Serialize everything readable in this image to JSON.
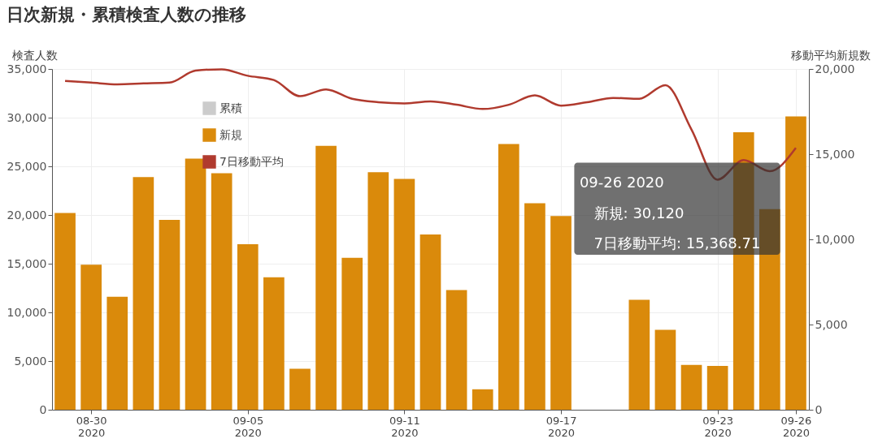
{
  "chart_data": {
    "type": "bar",
    "title": "日次新規・累積検査人数の推移",
    "ylabel": "検査人数",
    "y2label": "移動平均新規数",
    "x": [
      "2020-08-29",
      "2020-08-30",
      "2020-08-31",
      "2020-09-01",
      "2020-09-02",
      "2020-09-03",
      "2020-09-04",
      "2020-09-05",
      "2020-09-06",
      "2020-09-07",
      "2020-09-08",
      "2020-09-09",
      "2020-09-10",
      "2020-09-11",
      "2020-09-12",
      "2020-09-13",
      "2020-09-14",
      "2020-09-15",
      "2020-09-16",
      "2020-09-17",
      "2020-09-18",
      "2020-09-19",
      "2020-09-20",
      "2020-09-21",
      "2020-09-22",
      "2020-09-23",
      "2020-09-24",
      "2020-09-25",
      "2020-09-26"
    ],
    "xlim": [
      "2020-08-28T12:00",
      "2020-09-26T12:00"
    ],
    "xticks": [
      {
        "value": "2020-08-30",
        "label": "08-30\n2020"
      },
      {
        "value": "2020-09-05",
        "label": "09-05\n2020"
      },
      {
        "value": "2020-09-11",
        "label": "09-11\n2020"
      },
      {
        "value": "2020-09-17",
        "label": "09-17\n2020"
      },
      {
        "value": "2020-09-23",
        "label": "09-23\n2020"
      },
      {
        "value": "2020-09-26",
        "label": "09-26\n2020"
      }
    ],
    "ylim": [
      0,
      35000
    ],
    "yticks": [
      0,
      {
        "value": 5000,
        "label": "5,000"
      },
      {
        "value": 10000,
        "label": "10,000"
      },
      {
        "value": 15000,
        "label": "15,000"
      },
      {
        "value": 20000,
        "label": "20,000"
      },
      {
        "value": 25000,
        "label": "25,000"
      },
      {
        "value": 30000,
        "label": "30,000"
      },
      {
        "value": 35000,
        "label": "35,000"
      }
    ],
    "y2lim": [
      0,
      20000
    ],
    "y2ticks": [
      0,
      {
        "value": 5000,
        "label": "5,000"
      },
      {
        "value": 10000,
        "label": "10,000"
      },
      {
        "value": 15000,
        "label": "15,000"
      },
      {
        "value": 20000,
        "label": "20,000"
      }
    ],
    "series": [
      {
        "name": "累積",
        "color": "#cccccc",
        "values": [
          null,
          null,
          null,
          null,
          null,
          null,
          null,
          null,
          null,
          null,
          null,
          null,
          null,
          null,
          null,
          null,
          null,
          null,
          null,
          null,
          null,
          null,
          null,
          null,
          null,
          null,
          null,
          null,
          null
        ]
      },
      {
        "name": "新規",
        "color": "#da8a0b",
        "values": [
          20200,
          14900,
          11600,
          23900,
          19500,
          25800,
          24300,
          17000,
          13600,
          4200,
          27100,
          15600,
          24400,
          23700,
          18000,
          12300,
          2100,
          27300,
          21200,
          19900,
          null,
          null,
          11300,
          8200,
          4600,
          4500,
          28500,
          20600,
          30120
        ]
      },
      {
        "name": "7日移動平均",
        "type": "line",
        "axis": "y2",
        "color": "#b03a2e",
        "values": [
          19300,
          19200,
          19100,
          19150,
          19200,
          19900,
          19980,
          19600,
          19350,
          18400,
          18800,
          18250,
          18050,
          17980,
          18100,
          17900,
          17650,
          17900,
          18450,
          17850,
          18050,
          18300,
          18250,
          19050,
          16450,
          13500,
          14650,
          14000,
          15368.71
        ]
      }
    ],
    "annotations": [
      "09-26 2020",
      "新規: 30,120",
      "7日移動平均: 15,368.71"
    ],
    "grid": true,
    "legend": "top left"
  }
}
